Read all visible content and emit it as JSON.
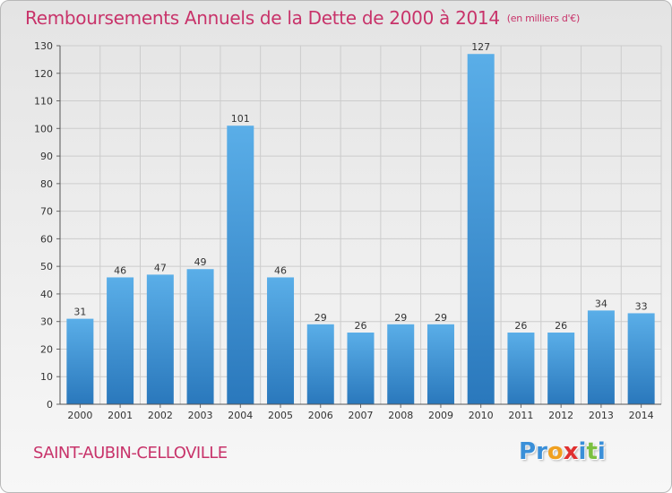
{
  "header": {
    "title": "Remboursements Annuels de la Dette de 2000 à 2014",
    "subtitle": "(en milliers d'€)"
  },
  "footer": {
    "commune": "SAINT-AUBIN-CELLOVILLE",
    "logo_letters": [
      {
        "char": "P",
        "color": "#3a8fd8"
      },
      {
        "char": "r",
        "color": "#3a8fd8"
      },
      {
        "char": "o",
        "color": "#f0a020"
      },
      {
        "char": "x",
        "color": "#e03030"
      },
      {
        "char": "i",
        "color": "#3a8fd8"
      },
      {
        "char": "t",
        "color": "#7cc040"
      },
      {
        "char": "i",
        "color": "#3a8fd8"
      }
    ]
  },
  "chart_data": {
    "type": "bar",
    "title": "Remboursements Annuels de la Dette de 2000 à 2014",
    "subtitle": "(en milliers d'€)",
    "categories": [
      "2000",
      "2001",
      "2002",
      "2003",
      "2004",
      "2005",
      "2006",
      "2007",
      "2008",
      "2009",
      "2010",
      "2011",
      "2012",
      "2013",
      "2014"
    ],
    "values": [
      31,
      46,
      47,
      49,
      101,
      46,
      29,
      26,
      29,
      29,
      127,
      26,
      26,
      34,
      33
    ],
    "ylim": [
      0,
      130
    ],
    "yticks": [
      0,
      10,
      20,
      30,
      40,
      50,
      60,
      70,
      80,
      90,
      100,
      110,
      120,
      130
    ],
    "grid": true,
    "colors": {
      "bar_light": "#5aaee8",
      "bar_dark": "#2a78bc",
      "grid": "#cccccc",
      "title": "#c8336a"
    }
  }
}
